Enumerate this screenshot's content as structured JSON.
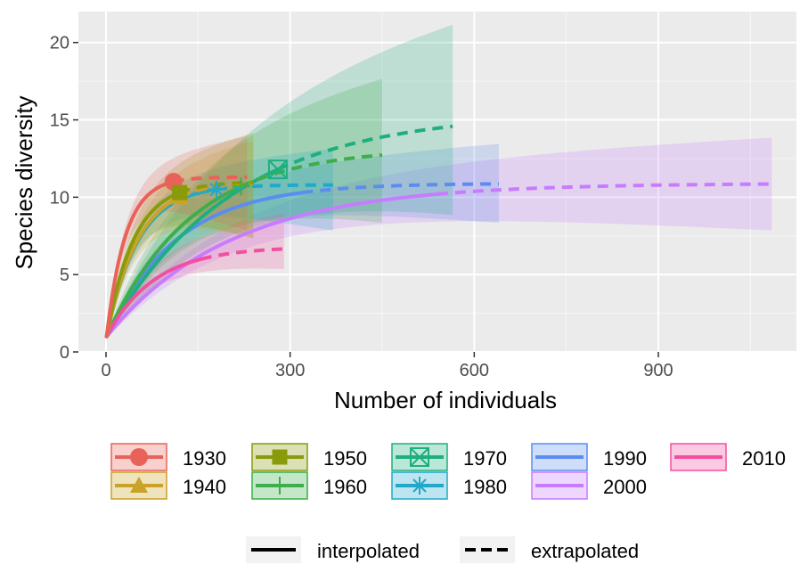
{
  "chart_data": {
    "type": "line",
    "title": "",
    "xlabel": "Number of individuals",
    "ylabel": "Species diversity",
    "xlim": [
      -45,
      1125
    ],
    "ylim": [
      0,
      22
    ],
    "x_ticks": [
      0,
      300,
      600,
      900
    ],
    "y_ticks": [
      0,
      5,
      10,
      15,
      20
    ],
    "x_tick_labels": [
      "0",
      "300",
      "600",
      "900"
    ],
    "y_tick_labels": [
      "0",
      "5",
      "10",
      "15",
      "20"
    ],
    "grid": true,
    "legend_position": "bottom",
    "legend_linetype": [
      {
        "label": "interpolated",
        "dash": "solid"
      },
      {
        "label": "extrapolated",
        "dash": "dashed"
      }
    ],
    "series": [
      {
        "name": "1930",
        "color": "#E8625A",
        "marker": "circle",
        "ref_n": 110,
        "obs": 11.0,
        "max_n": 230,
        "asymptote": 11.3,
        "ci_low_end": 8.0,
        "ci_high_end": 13.8
      },
      {
        "name": "1940",
        "color": "#C9A227",
        "marker": "triangle",
        "ref_n": 120,
        "obs": 10.0,
        "max_n": 240,
        "asymptote": 11.0,
        "ci_low_end": 7.5,
        "ci_high_end": 13.5
      },
      {
        "name": "1950",
        "color": "#8A9A0B",
        "marker": "square",
        "ref_n": 120,
        "obs": 10.3,
        "max_n": 240,
        "asymptote": 11.0,
        "ci_low_end": 7.5,
        "ci_high_end": 14.0
      },
      {
        "name": "1960",
        "color": "#3DAE4B",
        "marker": "cross",
        "ref_n": 220,
        "obs": 10.7,
        "max_n": 450,
        "asymptote": 13.2,
        "ci_low_end": 8.5,
        "ci_high_end": 17.5
      },
      {
        "name": "1970",
        "color": "#1EAF7F",
        "marker": "boxx",
        "ref_n": 280,
        "obs": 11.8,
        "max_n": 565,
        "asymptote": 15.5,
        "ci_low_end": 9.0,
        "ci_high_end": 21.0
      },
      {
        "name": "1980",
        "color": "#22A8C9",
        "marker": "asterisk",
        "ref_n": 180,
        "obs": 10.5,
        "max_n": 370,
        "asymptote": 10.8,
        "ci_low_end": 8.0,
        "ci_high_end": 13.0
      },
      {
        "name": "1990",
        "color": "#5B8DEF",
        "marker": "none",
        "ref_n": 320,
        "obs": 10.3,
        "max_n": 640,
        "asymptote": 10.9,
        "ci_low_end": 8.5,
        "ci_high_end": 13.3
      },
      {
        "name": "2000",
        "color": "#C77CFF",
        "marker": "none",
        "ref_n": 540,
        "obs": 10.2,
        "max_n": 1085,
        "asymptote": 10.9,
        "ci_low_end": 8.0,
        "ci_high_end": 13.7
      },
      {
        "name": "2010",
        "color": "#F2509E",
        "marker": "none",
        "ref_n": 155,
        "obs": 6.0,
        "max_n": 290,
        "asymptote": 6.8,
        "ci_low_end": 5.5,
        "ci_high_end": 8.8
      }
    ]
  }
}
